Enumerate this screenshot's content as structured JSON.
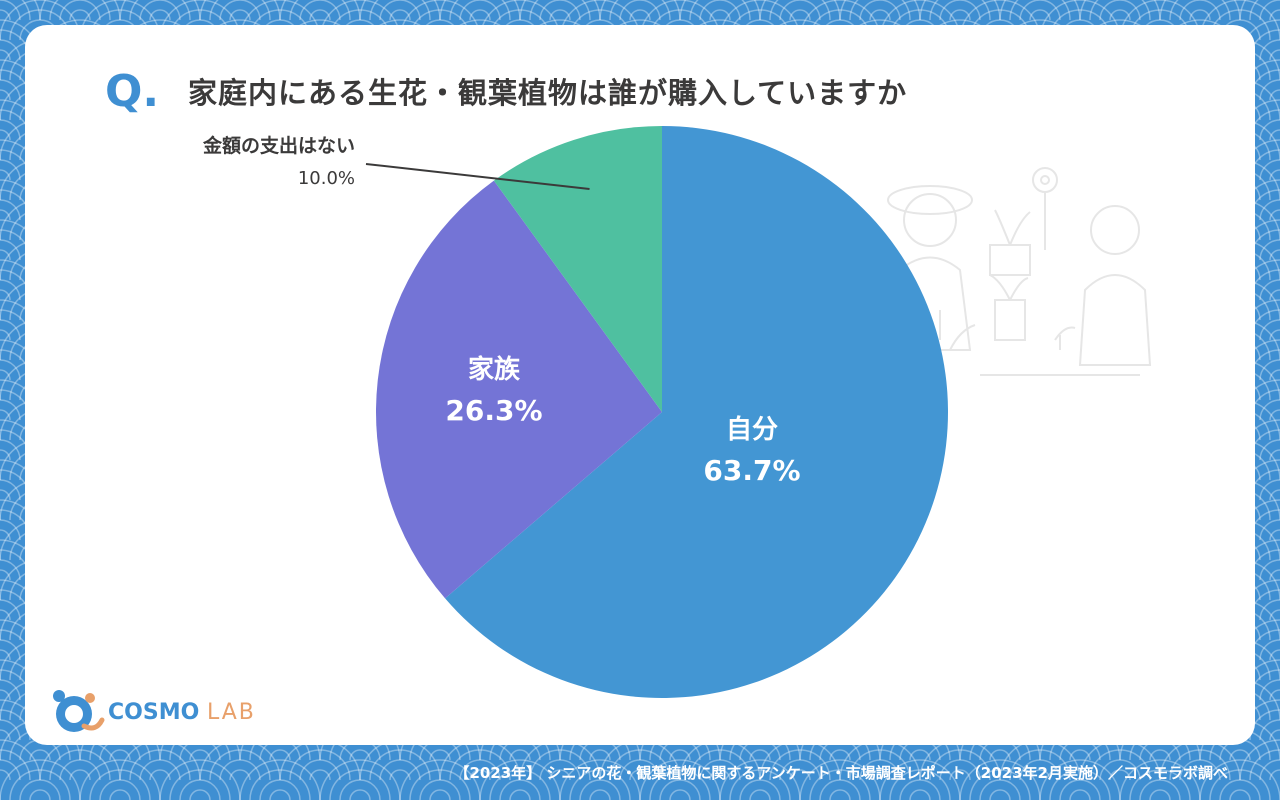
{
  "header": {
    "q_mark": "Q.",
    "title": "家庭内にある生花・観葉植物は誰が購入していますか"
  },
  "logo": {
    "name_main": "COSMO",
    "name_sub": "LAB"
  },
  "footer": {
    "source": "【2023年】 シニアの花・観葉植物に関するアンケート・市場調査レポート（2023年2月実施）／コスモラボ調べ"
  },
  "colors": {
    "background": "#3f8fd2",
    "self": "#4396d3",
    "family": "#7474d6",
    "no_spending": "#4fc0a0",
    "label_dark": "#3b3a3a",
    "label_light": "#ffffff"
  },
  "chart_data": {
    "type": "pie",
    "title": "家庭内にある生花・観葉植物は誰が購入していますか",
    "slices": [
      {
        "label": "自分",
        "value": 63.7,
        "display": "63.7%",
        "color": "#4396d3"
      },
      {
        "label": "家族",
        "value": 26.3,
        "display": "26.3%",
        "color": "#7474d6"
      },
      {
        "label": "金額の支出はない",
        "value": 10.0,
        "display": "10.0%",
        "color": "#4fc0a0"
      }
    ],
    "start": "12 o'clock",
    "direction": "clockwise"
  }
}
